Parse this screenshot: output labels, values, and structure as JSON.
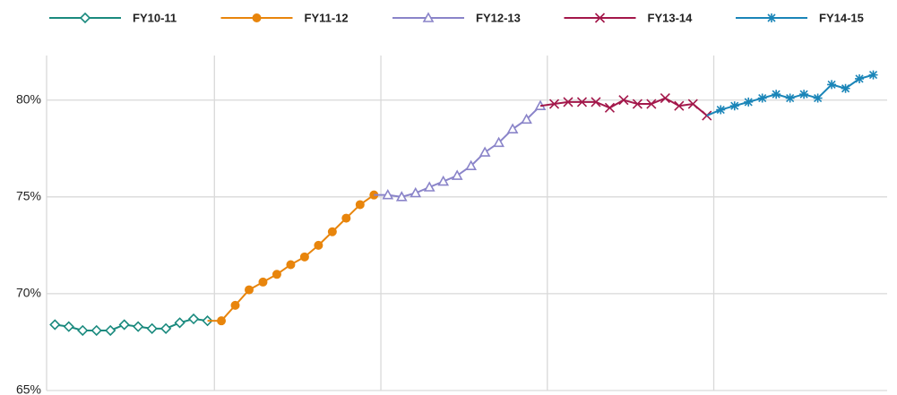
{
  "chart_data": {
    "type": "line",
    "xlim": [
      -0.6,
      60
    ],
    "xticks": [
      11.5,
      23.5,
      35.5,
      47.5
    ],
    "ylim": [
      65,
      82.3
    ],
    "yticks": [
      {
        "value": 65,
        "label": "65%"
      },
      {
        "value": 70,
        "label": "70%"
      },
      {
        "value": 75,
        "label": "75%"
      },
      {
        "value": 80,
        "label": "80%"
      }
    ],
    "grid": true,
    "legend": "top",
    "series": [
      {
        "name": "FY10-11",
        "color": "#1a8a7e",
        "marker": "diamond",
        "x": [
          0,
          1,
          2,
          3,
          4,
          5,
          6,
          7,
          8,
          9,
          10,
          11
        ],
        "values": [
          68.4,
          68.3,
          68.1,
          68.1,
          68.1,
          68.4,
          68.3,
          68.2,
          68.2,
          68.5,
          68.7,
          68.6
        ]
      },
      {
        "name": "FY11-12",
        "color": "#e8850c",
        "marker": "circle",
        "x": [
          12,
          13,
          14,
          15,
          16,
          17,
          18,
          19,
          20,
          21,
          22,
          23
        ],
        "values": [
          68.6,
          69.4,
          70.2,
          70.6,
          71.0,
          71.5,
          71.9,
          72.5,
          73.2,
          73.9,
          74.6,
          75.1
        ]
      },
      {
        "name": "FY12-13",
        "color": "#8a84c9",
        "marker": "triangle",
        "x": [
          24,
          25,
          26,
          27,
          28,
          29,
          30,
          31,
          32,
          33,
          34,
          35
        ],
        "values": [
          75.1,
          75.0,
          75.2,
          75.5,
          75.8,
          76.1,
          76.6,
          77.3,
          77.8,
          78.5,
          79.0,
          79.7
        ]
      },
      {
        "name": "FY13-14",
        "color": "#a3174a",
        "marker": "cross",
        "x": [
          36,
          37,
          38,
          39,
          40,
          41,
          42,
          43,
          44,
          45,
          46,
          47
        ],
        "values": [
          79.8,
          79.9,
          79.9,
          79.9,
          79.6,
          80.0,
          79.8,
          79.8,
          80.1,
          79.7,
          79.8,
          79.2
        ]
      },
      {
        "name": "FY14-15",
        "color": "#1a85b8",
        "marker": "asterisk",
        "x": [
          48,
          49,
          50,
          51,
          52,
          53,
          54,
          55,
          56,
          57,
          58,
          59
        ],
        "values": [
          79.5,
          79.7,
          79.9,
          80.1,
          80.3,
          80.1,
          80.3,
          80.1,
          80.8,
          80.6,
          81.1,
          81.3
        ]
      }
    ]
  }
}
